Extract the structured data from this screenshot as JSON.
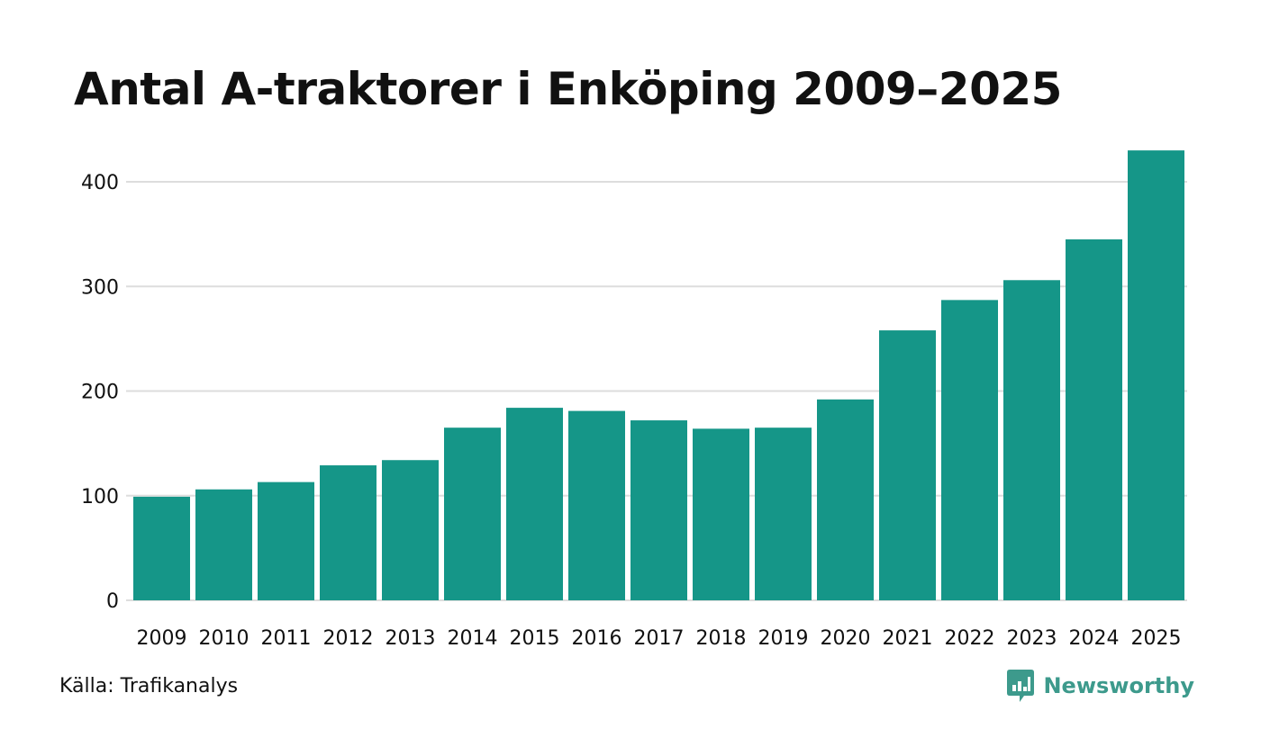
{
  "title": "Antal A-traktorer i Enköping 2009–2025",
  "source": "Källa: Trafikanalys",
  "brand": {
    "name": "Newsworthy",
    "icon": "newsworthy-logo-icon",
    "color": "#3d9a8c"
  },
  "colors": {
    "bar": "#159688",
    "grid": "#dddddd",
    "text": "#111111"
  },
  "chart_data": {
    "type": "bar",
    "title": "Antal A-traktorer i Enköping 2009–2025",
    "xlabel": "",
    "ylabel": "",
    "categories": [
      "2009",
      "2010",
      "2011",
      "2012",
      "2013",
      "2014",
      "2015",
      "2016",
      "2017",
      "2018",
      "2019",
      "2020",
      "2021",
      "2022",
      "2023",
      "2024",
      "2025"
    ],
    "values": [
      99,
      106,
      113,
      129,
      134,
      165,
      184,
      181,
      172,
      164,
      165,
      192,
      258,
      287,
      306,
      345,
      430
    ],
    "yticks": [
      0,
      100,
      200,
      300,
      400
    ],
    "ylim": [
      0,
      430
    ],
    "grid": true,
    "legend": "none"
  }
}
